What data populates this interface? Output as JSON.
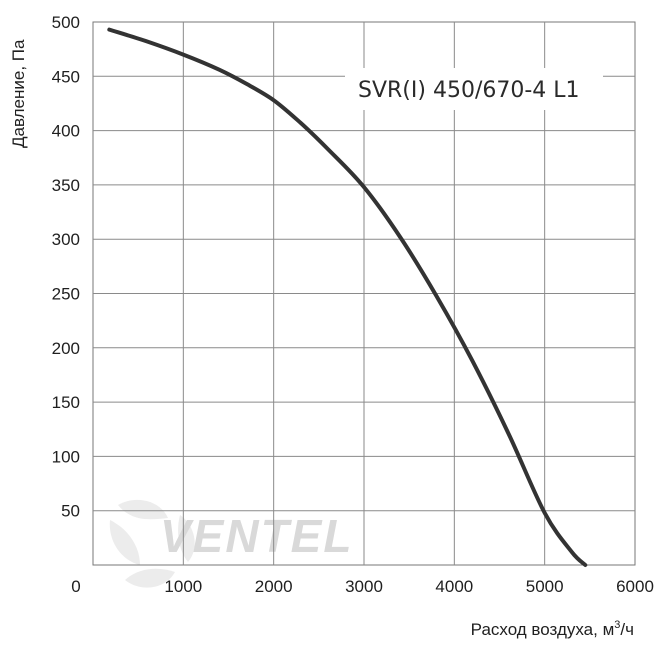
{
  "chart_data": {
    "type": "line",
    "title": "SVR(I) 450/670-4 L1",
    "xlabel": "Расход воздуха, м",
    "xlabel_sup": "3",
    "xlabel_tail": "/ч",
    "ylabel": "Давление, Па",
    "xlim": [
      0,
      6000
    ],
    "ylim": [
      0,
      500
    ],
    "x_ticks": [
      "0",
      "1000",
      "2000",
      "3000",
      "4000",
      "5000",
      "6000"
    ],
    "y_ticks": [
      "50",
      "100",
      "150",
      "200",
      "250",
      "300",
      "350",
      "400",
      "450",
      "500"
    ],
    "grid": true,
    "series": [
      {
        "x": [
          180,
          600,
          1000,
          1400,
          1700,
          2000,
          2300,
          2600,
          3000,
          3400,
          3800,
          4200,
          4600,
          5000,
          5300,
          5450
        ],
        "y": [
          493,
          482,
          470,
          456,
          443,
          428,
          407,
          383,
          348,
          302,
          248,
          188,
          121,
          48,
          12,
          0
        ],
        "color": "#333333"
      }
    ],
    "watermark": "VENTEL"
  }
}
